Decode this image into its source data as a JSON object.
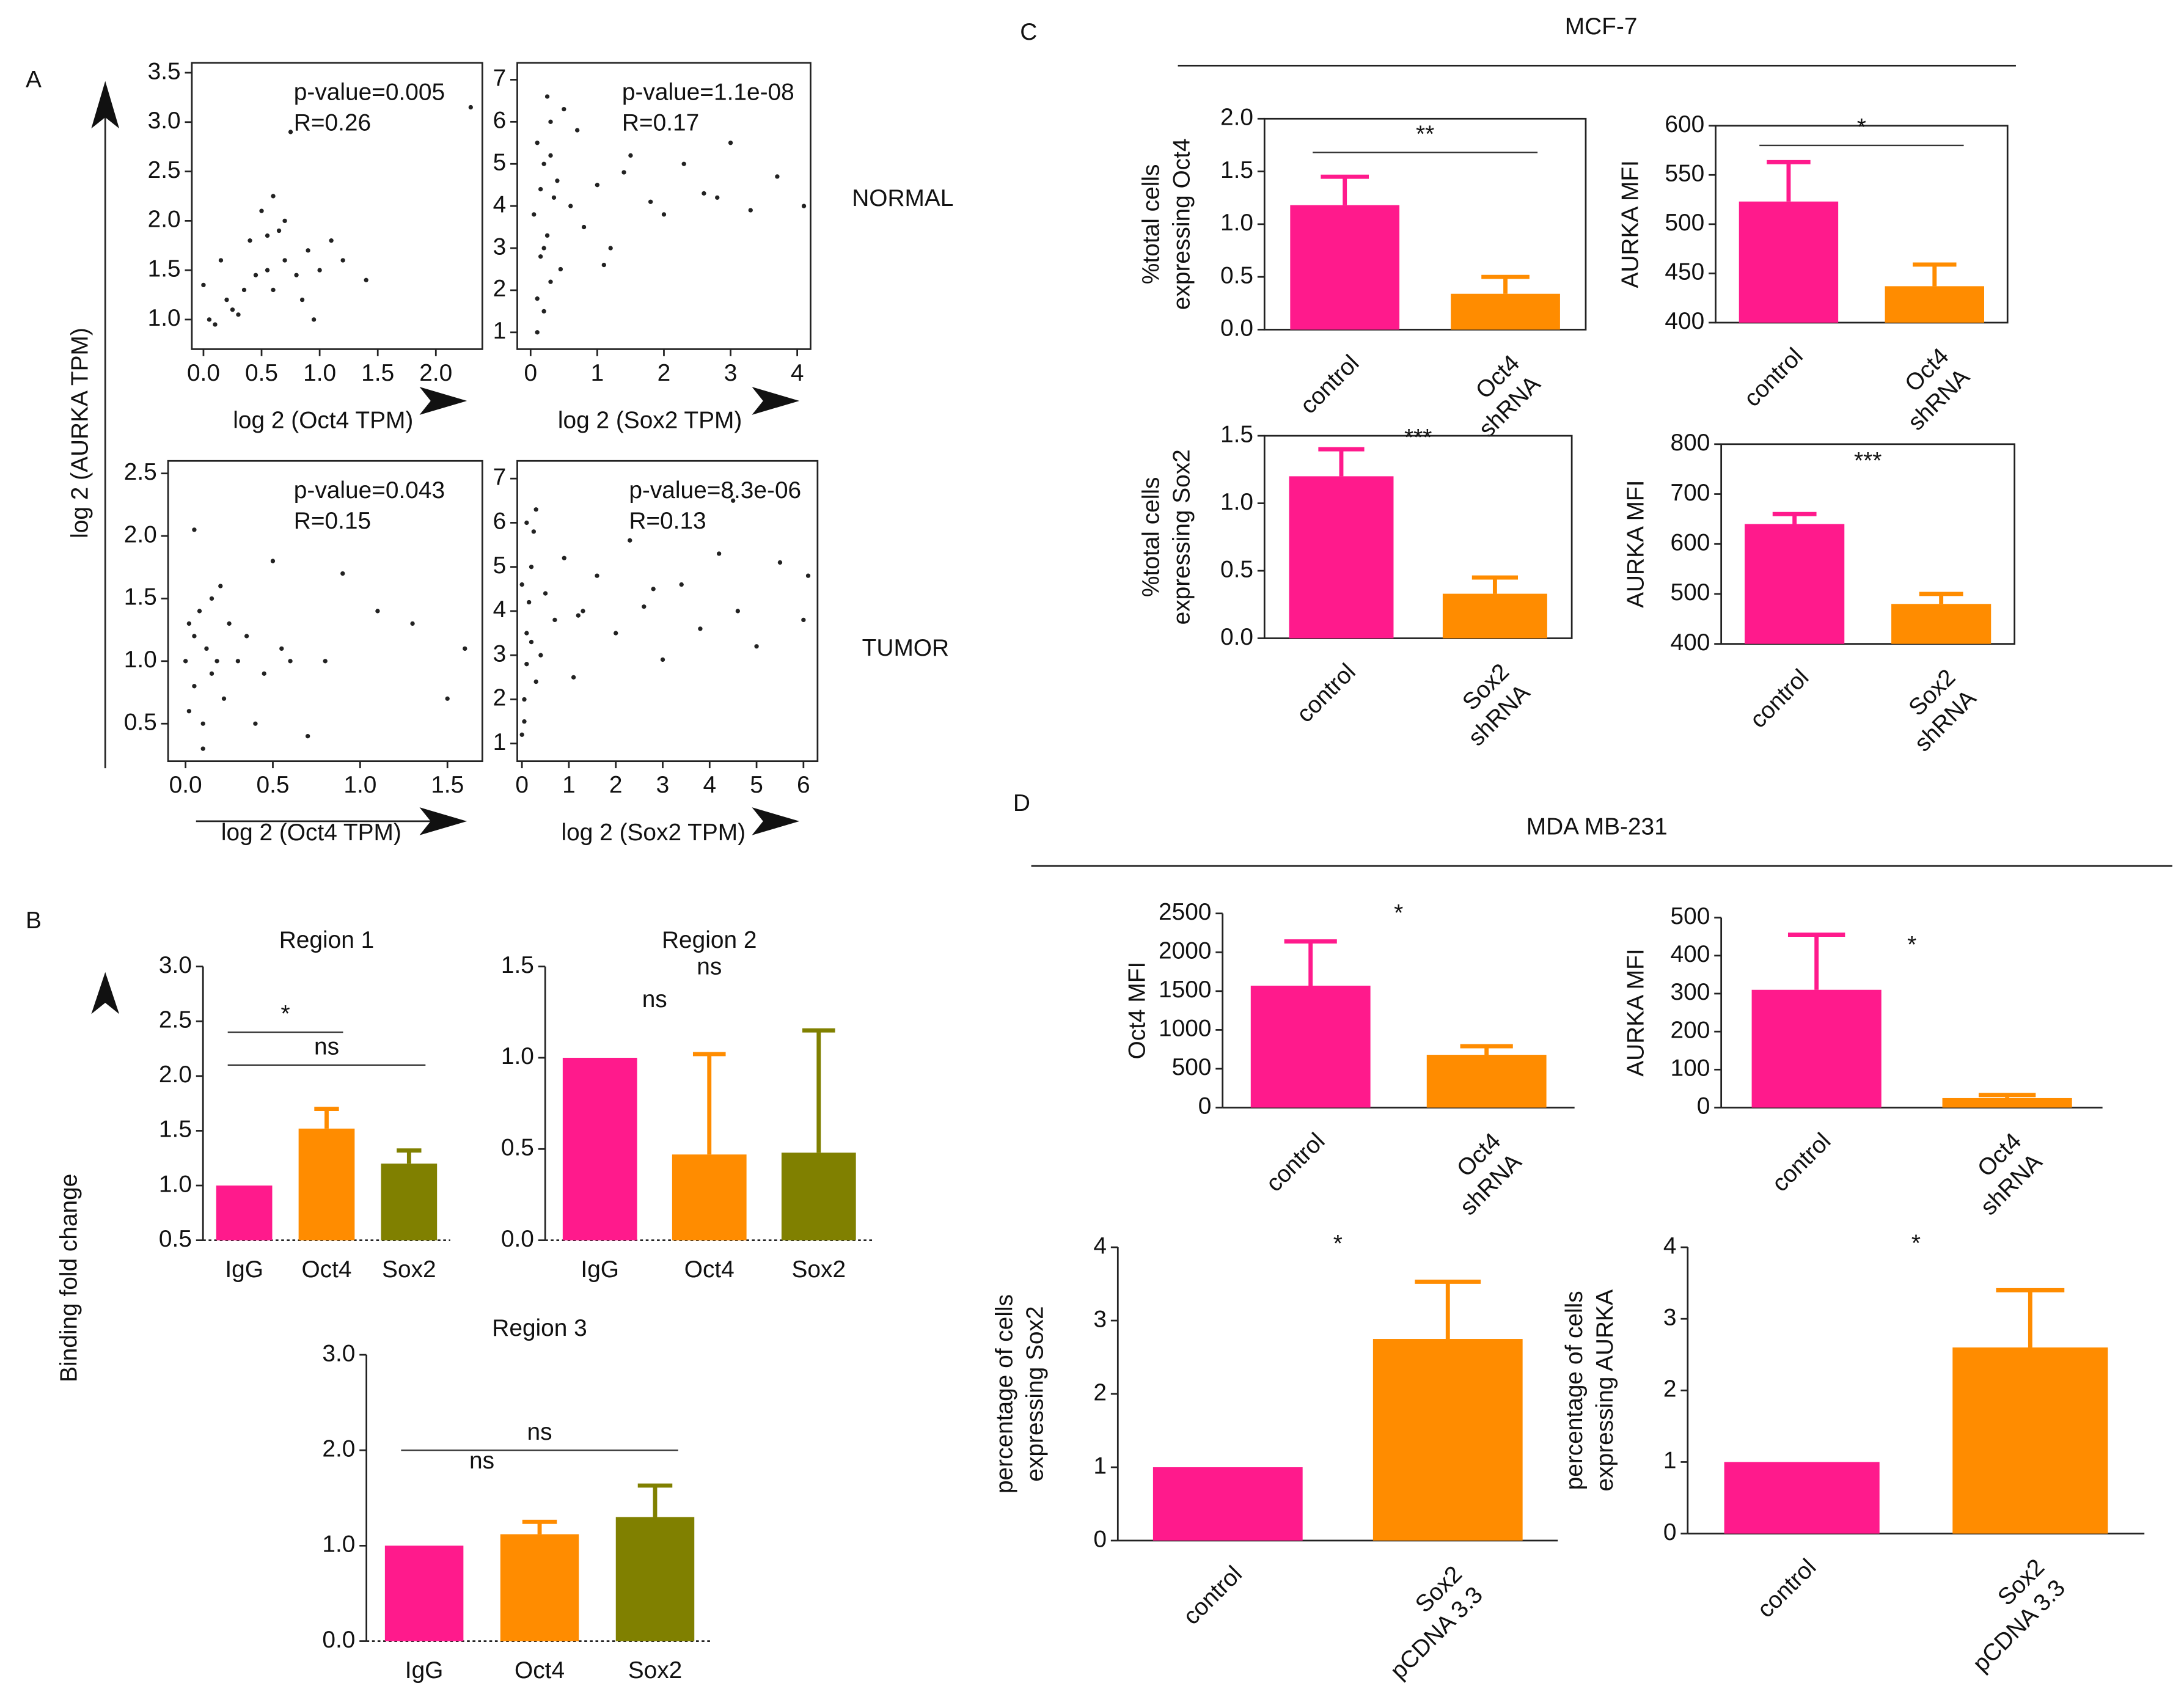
{
  "figure": {
    "panels": [
      "A",
      "B",
      "C",
      "D"
    ],
    "row_labels": [
      "NORMAL",
      "TUMOR"
    ],
    "shared_ylabel_a": "log 2 (AURKA TPM)",
    "shared_ylabel_b": "Binding fold change",
    "group_titles": [
      "MCF-7",
      "MDA MB-231"
    ]
  },
  "chart_data": [
    {
      "type": "scatter",
      "xlabel": "log 2 (Oct4 TPM)",
      "annotations": [
        "p-value=0.005",
        "R=0.26"
      ],
      "x": [
        0.0,
        0.05,
        0.1,
        0.15,
        0.2,
        0.3,
        0.35,
        0.4,
        0.45,
        0.5,
        0.55,
        0.6,
        0.65,
        0.7,
        0.75,
        0.8,
        0.85,
        0.9,
        1.0,
        1.1,
        1.2,
        1.4,
        0.25,
        0.55,
        0.6,
        0.7,
        0.95,
        2.3
      ],
      "y": [
        1.35,
        1.0,
        0.95,
        1.6,
        1.2,
        1.05,
        1.3,
        1.8,
        1.45,
        2.1,
        1.5,
        1.3,
        1.9,
        1.6,
        2.9,
        1.45,
        1.2,
        1.7,
        1.5,
        1.8,
        1.6,
        1.4,
        1.1,
        1.85,
        2.25,
        2.0,
        1.0,
        3.15
      ],
      "color": "#222222",
      "xlim": [
        -0.1,
        2.4
      ],
      "ylim": [
        0.7,
        3.6
      ],
      "xticks": [
        {
          "value": 0,
          "label": "0.0"
        },
        0.5,
        {
          "value": 1,
          "label": "1.0"
        },
        1.5,
        {
          "value": 2,
          "label": "2.0"
        }
      ],
      "yticks": [
        {
          "value": 1,
          "label": "1.0"
        },
        1.5,
        {
          "value": 2,
          "label": "2.0"
        },
        2.5,
        {
          "value": 3,
          "label": "3.0"
        },
        3.5
      ]
    },
    {
      "type": "scatter",
      "xlabel": "log 2 (Sox2 TPM)",
      "annotations": [
        "p-value=1.1e-08",
        "R=0.17"
      ],
      "x": [
        0.1,
        0.2,
        0.3,
        0.15,
        0.25,
        0.05,
        0.35,
        0.4,
        0.2,
        0.1,
        0.3,
        0.5,
        0.6,
        0.8,
        1.0,
        1.2,
        1.5,
        1.8,
        2.0,
        2.3,
        2.6,
        3.0,
        3.3,
        3.7,
        4.1,
        0.1,
        0.2,
        0.15,
        0.3,
        0.45,
        0.7,
        1.1,
        1.4,
        2.8,
        0.25
      ],
      "y": [
        1.0,
        1.5,
        2.2,
        2.8,
        3.3,
        3.8,
        4.2,
        4.6,
        5.0,
        5.5,
        6.0,
        6.3,
        4.0,
        3.5,
        4.5,
        3.0,
        5.2,
        4.1,
        3.8,
        5.0,
        4.3,
        5.5,
        3.9,
        4.7,
        4.0,
        1.8,
        3.0,
        4.4,
        5.2,
        2.5,
        5.8,
        2.6,
        4.8,
        4.2,
        6.6
      ],
      "color": "#222222",
      "xlim": [
        -0.2,
        4.2
      ],
      "ylim": [
        0.6,
        7.4
      ],
      "xticks": [
        0,
        1,
        2,
        3,
        4
      ],
      "yticks": [
        1,
        2,
        3,
        4,
        5,
        6,
        7
      ]
    },
    {
      "type": "scatter",
      "xlabel": "log 2 (Oct4 TPM)",
      "annotations": [
        "p-value=0.043",
        "R=0.15"
      ],
      "x": [
        0.0,
        0.02,
        0.05,
        0.05,
        0.08,
        0.1,
        0.12,
        0.15,
        0.18,
        0.2,
        0.22,
        0.25,
        0.3,
        0.35,
        0.4,
        0.45,
        0.5,
        0.55,
        0.6,
        0.7,
        0.8,
        0.9,
        1.1,
        1.3,
        1.5,
        1.6,
        0.05,
        0.1,
        0.15,
        0.02
      ],
      "y": [
        1.0,
        0.6,
        1.2,
        0.8,
        1.4,
        0.3,
        1.1,
        0.9,
        1.0,
        1.6,
        0.7,
        1.3,
        1.0,
        1.2,
        0.5,
        0.9,
        1.8,
        1.1,
        1.0,
        0.4,
        1.0,
        1.7,
        1.4,
        1.3,
        0.7,
        1.1,
        2.05,
        0.5,
        1.5,
        1.3
      ],
      "color": "#222222",
      "xlim": [
        -0.1,
        1.7
      ],
      "ylim": [
        0.2,
        2.6
      ],
      "xticks": [
        {
          "value": 0,
          "label": "0.0"
        },
        0.5,
        {
          "value": 1,
          "label": "1.0"
        },
        1.5
      ],
      "yticks": [
        0.5,
        {
          "value": 1,
          "label": "1.0"
        },
        1.5,
        {
          "value": 2,
          "label": "2.0"
        },
        2.5
      ]
    },
    {
      "type": "scatter",
      "xlabel": "log 2 (Sox2 TPM)",
      "annotations": [
        "p-value=8.3e-06",
        "R=0.13"
      ],
      "x": [
        0,
        0.05,
        0.1,
        0.1,
        0.15,
        0.2,
        0.25,
        0.3,
        0.4,
        0.5,
        0.7,
        0.9,
        1.1,
        1.3,
        1.6,
        2.0,
        2.3,
        2.6,
        3.0,
        3.4,
        3.8,
        4.2,
        4.6,
        5.0,
        5.5,
        6.1,
        6.0,
        0.05,
        0.1,
        0.2,
        0.3,
        1.2,
        2.8,
        4.5,
        0.0
      ],
      "y": [
        1.2,
        2.0,
        2.8,
        3.5,
        4.2,
        5.0,
        5.8,
        6.3,
        3.0,
        4.4,
        3.8,
        5.2,
        2.5,
        4.0,
        4.8,
        3.5,
        5.6,
        4.1,
        2.9,
        4.6,
        3.6,
        5.3,
        4.0,
        3.2,
        5.1,
        4.8,
        3.8,
        1.5,
        6.0,
        3.3,
        2.4,
        3.9,
        4.5,
        6.5,
        4.6
      ],
      "color": "#222222",
      "xlim": [
        -0.1,
        6.3
      ],
      "ylim": [
        0.6,
        7.4
      ],
      "xticks": [
        0,
        1,
        2,
        3,
        4,
        5,
        6
      ],
      "yticks": [
        1,
        2,
        3,
        4,
        5,
        6,
        7
      ]
    },
    {
      "type": "bar",
      "title": "Region 1",
      "categories": [
        [
          "IgG"
        ],
        [
          "Oct4"
        ],
        [
          "Sox2"
        ]
      ],
      "values": [
        1.0,
        1.52,
        1.2
      ],
      "errors": [
        0,
        0.18,
        0.12
      ],
      "colors": [
        "#ff1a8c",
        "#ff8c00",
        "#808000"
      ],
      "ylim": [
        0.5,
        3.0
      ],
      "yticks": [
        0.5,
        {
          "value": 1,
          "label": "1.0"
        },
        1.5,
        {
          "value": 2,
          "label": "2.0"
        },
        2.5,
        {
          "value": 3,
          "label": "3.0"
        }
      ],
      "annotations": [
        {
          "text": "*",
          "y": 2.4,
          "from": 0,
          "to": 1,
          "line": true
        },
        {
          "text": "ns",
          "y": 2.1,
          "from": 0,
          "to": 2,
          "line": true
        }
      ]
    },
    {
      "type": "bar",
      "title": "Region 2",
      "categories": [
        [
          "IgG"
        ],
        [
          "Oct4"
        ],
        [
          "Sox2"
        ]
      ],
      "values": [
        1.0,
        0.47,
        0.48
      ],
      "errors": [
        0,
        0.55,
        0.67
      ],
      "colors": [
        "#ff1a8c",
        "#ff8c00",
        "#808000"
      ],
      "ylim": [
        0,
        1.5
      ],
      "yticks": [
        {
          "value": 0,
          "label": "0.0"
        },
        0.5,
        {
          "value": 1,
          "label": "1.0"
        },
        1.5
      ],
      "annotations": [
        {
          "text": "ns",
          "y": 1.22,
          "from": 0,
          "to": 1,
          "line": false
        },
        {
          "text": "ns",
          "y": 1.4,
          "from": 0,
          "to": 2,
          "line": false
        }
      ]
    },
    {
      "type": "bar",
      "title": "Region 3",
      "categories": [
        [
          "IgG"
        ],
        [
          "Oct4"
        ],
        [
          "Sox2"
        ]
      ],
      "values": [
        1.0,
        1.12,
        1.3
      ],
      "errors": [
        0,
        0.13,
        0.33
      ],
      "colors": [
        "#ff1a8c",
        "#ff8c00",
        "#808000"
      ],
      "ylim": [
        0,
        3.0
      ],
      "yticks": [
        {
          "value": 0,
          "label": "0.0"
        },
        {
          "value": 1,
          "label": "1.0"
        },
        {
          "value": 2,
          "label": "2.0"
        },
        {
          "value": 3,
          "label": "3.0"
        }
      ],
      "annotations": [
        {
          "text": "ns",
          "y": 2.0,
          "from": 0,
          "to": 2,
          "line": true
        },
        {
          "text": "ns",
          "y": 1.7,
          "from": 0,
          "to": 1,
          "line": false
        }
      ]
    },
    {
      "type": "bar",
      "ylabel": [
        "%total cells",
        "expressing Oct4"
      ],
      "categories": [
        [
          "control"
        ],
        [
          "Oct4",
          "shRNA"
        ]
      ],
      "values": [
        1.18,
        0.34
      ],
      "errors": [
        0.27,
        0.16
      ],
      "colors": [
        "#ff1a8c",
        "#ff8c00"
      ],
      "ylim": [
        0,
        2.0
      ],
      "frame": true,
      "yticks": [
        {
          "value": 0,
          "label": "0.0"
        },
        0.5,
        {
          "value": 1,
          "label": "1.0"
        },
        1.5,
        {
          "value": 2,
          "label": "2.0"
        }
      ],
      "annotations": [
        {
          "text": "**",
          "y": 1.68,
          "from": 0,
          "to": 1,
          "line": true
        }
      ]
    },
    {
      "type": "bar",
      "ylabel": [
        "AURKA MFI"
      ],
      "categories": [
        [
          "control"
        ],
        [
          "Oct4",
          "shRNA"
        ]
      ],
      "values": [
        523,
        437
      ],
      "errors": [
        40,
        22
      ],
      "colors": [
        "#ff1a8c",
        "#ff8c00"
      ],
      "ylim": [
        400,
        600
      ],
      "frame": true,
      "yticks": [
        400,
        450,
        500,
        550,
        600
      ],
      "annotations": [
        {
          "text": "*",
          "y": 580,
          "from": 0,
          "to": 1,
          "line": true
        }
      ]
    },
    {
      "type": "bar",
      "ylabel": [
        "%total cells",
        "expressing Sox2"
      ],
      "categories": [
        [
          "control"
        ],
        [
          "Sox2",
          "shRNA"
        ]
      ],
      "values": [
        1.2,
        0.33
      ],
      "errors": [
        0.2,
        0.12
      ],
      "colors": [
        "#ff1a8c",
        "#ff8c00"
      ],
      "ylim": [
        0,
        1.5
      ],
      "frame": true,
      "yticks": [
        {
          "value": 0,
          "label": "0.0"
        },
        0.5,
        {
          "value": 1,
          "label": "1.0"
        },
        1.5
      ],
      "annotations": [
        {
          "text": "***",
          "y": 1.35,
          "from": 0,
          "to": 1,
          "line": false
        }
      ]
    },
    {
      "type": "bar",
      "ylabel": [
        "AURKA MFI"
      ],
      "categories": [
        [
          "control"
        ],
        [
          "Sox2",
          "shRNA"
        ]
      ],
      "values": [
        640,
        480
      ],
      "errors": [
        20,
        20
      ],
      "colors": [
        "#ff1a8c",
        "#ff8c00"
      ],
      "ylim": [
        400,
        800
      ],
      "frame": true,
      "yticks": [
        400,
        500,
        600,
        700,
        800
      ],
      "annotations": [
        {
          "text": "***",
          "y": 730,
          "from": 0,
          "to": 1,
          "line": false
        }
      ]
    },
    {
      "type": "bar",
      "ylabel": [
        "Oct4 MFI"
      ],
      "categories": [
        [
          "control"
        ],
        [
          "Oct4",
          "shRNA"
        ]
      ],
      "values": [
        1570,
        680
      ],
      "errors": [
        570,
        110
      ],
      "colors": [
        "#ff1a8c",
        "#ff8c00"
      ],
      "ylim": [
        0,
        2500
      ],
      "yticks": [
        0,
        500,
        1000,
        1500,
        2000,
        2500
      ],
      "annotations": [
        {
          "text": "*",
          "y": 2270,
          "from": 0,
          "to": 1,
          "line": false
        }
      ]
    },
    {
      "type": "bar",
      "ylabel": [
        "AURKA MFI"
      ],
      "categories": [
        [
          "control"
        ],
        [
          "Oct4",
          "shRNA"
        ]
      ],
      "values": [
        310,
        25
      ],
      "errors": [
        145,
        8
      ],
      "colors": [
        "#ff1a8c",
        "#ff8c00"
      ],
      "ylim": [
        0,
        500
      ],
      "yticks": [
        0,
        100,
        200,
        300,
        400,
        500
      ],
      "annotations": [
        {
          "text": "*",
          "y": 380,
          "from": 0,
          "to": 1,
          "line": false
        }
      ]
    },
    {
      "type": "bar",
      "ylabel": [
        "percentage of cells",
        "expressing Sox2"
      ],
      "categories": [
        [
          "control"
        ],
        [
          "Sox2",
          "pCDNA 3.3"
        ]
      ],
      "values": [
        1.0,
        2.75
      ],
      "errors": [
        0,
        0.78
      ],
      "colors": [
        "#ff1a8c",
        "#ff8c00"
      ],
      "ylim": [
        0,
        4
      ],
      "yticks": [
        0,
        1,
        2,
        3,
        4
      ],
      "annotations": [
        {
          "text": "*",
          "y": 3.8,
          "from": 0,
          "to": 1,
          "line": false
        }
      ]
    },
    {
      "type": "bar",
      "ylabel": [
        "percentage of cells",
        "expressing AURKA"
      ],
      "categories": [
        [
          "control"
        ],
        [
          "Sox2",
          "pCDNA 3.3"
        ]
      ],
      "values": [
        1.0,
        2.6
      ],
      "errors": [
        0,
        0.8
      ],
      "colors": [
        "#ff1a8c",
        "#ff8c00"
      ],
      "ylim": [
        0,
        4
      ],
      "yticks": [
        0,
        1,
        2,
        3,
        4
      ],
      "annotations": [
        {
          "text": "*",
          "y": 3.8,
          "from": 0,
          "to": 1,
          "line": false
        }
      ]
    }
  ]
}
